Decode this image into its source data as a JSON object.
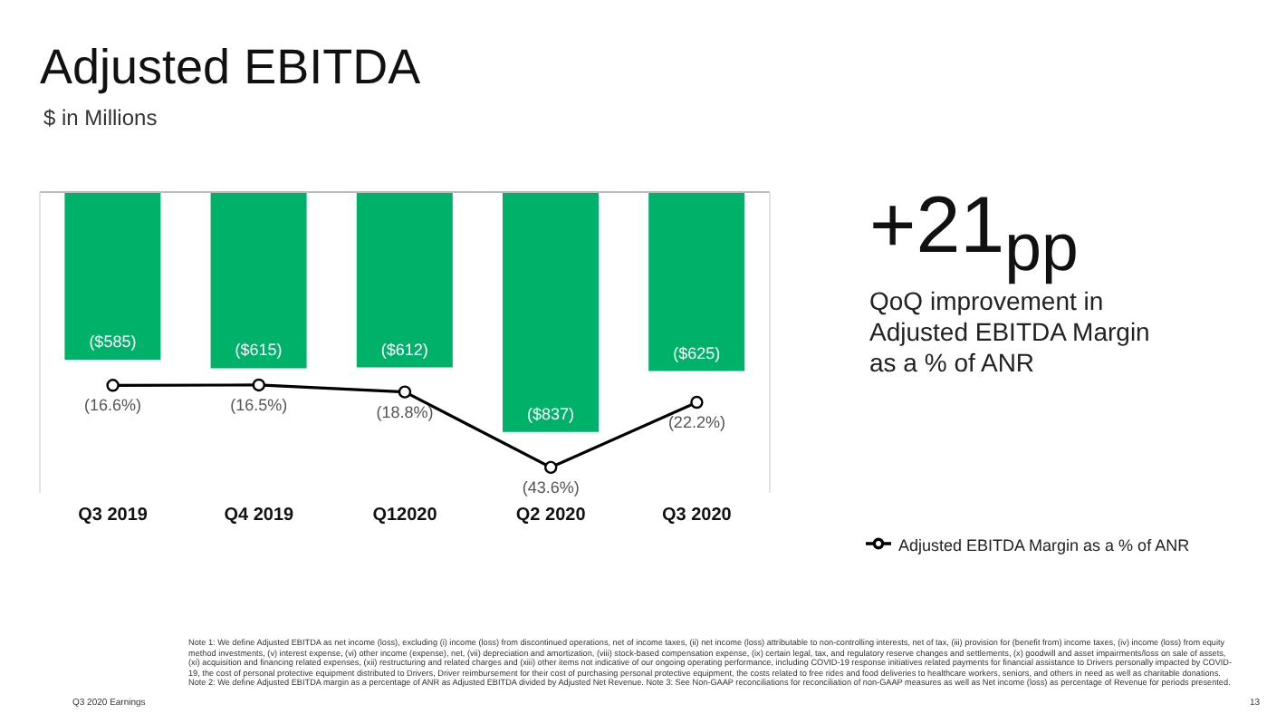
{
  "chart_data": {
    "type": "bar",
    "title": "Adjusted EBITDA",
    "subtitle": "$ in Millions",
    "categories": [
      "Q3 2019",
      "Q4 2019",
      "Q12020",
      "Q2 2020",
      "Q3 2020"
    ],
    "series": [
      {
        "type": "bar",
        "color": "#00b16a",
        "values": [
          -585,
          -615,
          -612,
          -837,
          -625
        ],
        "value_labels": [
          "($585)",
          "($615)",
          "($612)",
          "($837)",
          "($625)"
        ]
      },
      {
        "type": "line",
        "axis": "y2",
        "name": "Adjusted EBITDA Margin as a % of ANR",
        "color": "#000000",
        "marker": "circle",
        "values": [
          -16.6,
          -16.5,
          -18.8,
          -43.6,
          -22.2
        ],
        "value_labels": [
          "(16.6%)",
          "(16.5%)",
          "(18.8%)",
          "(43.6%)",
          "(22.2%)"
        ]
      }
    ],
    "ylim": [
      -1050,
      0
    ],
    "y2lim": [
      -52,
      47
    ],
    "tick_labels": "x",
    "legend": "bottom right",
    "annotations": [
      "+21$_{pp}$",
      "QoQ improvement in Adjusted EBITDA Margin as a % of ANR",
      "Note 1: We define Adjusted EBITDA as net income (loss), excluding (i) income (loss) from discontinued operations, net of income taxes, (ii) net income (loss) attributable to non-controlling interests, net of tax, (iii) provision for (benefit from) income taxes, (iv) income (loss) from equity method investments, (v) interest expense, (vi) other income (expense), net, (vii) depreciation and amortization, (viii) stock-based compensation expense, (ix) certain legal, tax, and regulatory reserve changes and settlements, (x) goodwill and asset impairments/loss on sale of assets, (xi) acquisition and financing related expenses, (xii) restructuring and related charges and (xiii) other items not indicative of our ongoing operating performance, including COVID-19 response initiatives related payments for financial assistance to Drivers personally impacted by COVID-19, the cost of personal protective equipment distributed to Drivers, Driver reimbursement for their cost of purchasing personal protective equipment, the costs related to free rides and food deliveries to healthcare workers, seniors, and others in need as well as charitable donations. Note 2: We define Adjusted EBITDA margin as a percentage of ANR as Adjusted EBITDA divided by Adjusted Net Revenue. Note 3: See Non-GAAP reconciliations for reconciliation of non-GAAP measures as well as Net income (loss) as percentage of Revenue for periods presented.",
      "Q3 2020 Earnings",
      "13"
    ]
  }
}
